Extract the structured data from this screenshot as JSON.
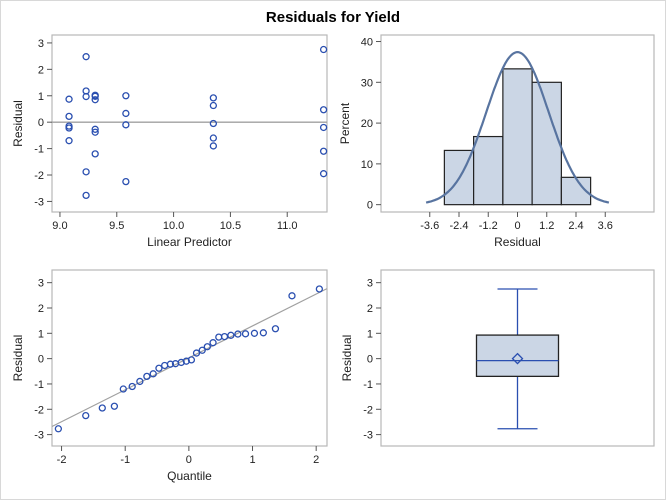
{
  "title": "Residuals for Yield",
  "colors": {
    "marker": "#2a4fb0",
    "fill": "#cbd6e5",
    "curve": "#5874a0",
    "refline": "#a0a0a0",
    "frame": "#b8b8b8"
  },
  "chart_data": [
    {
      "type": "scatter",
      "xlabel": "Linear Predictor",
      "ylabel": "Residual",
      "xlim": [
        8.93,
        11.35
      ],
      "ylim": [
        -3.4,
        3.3
      ],
      "xticks": [
        "9.0",
        "9.5",
        "10.0",
        "10.5",
        "11.0"
      ],
      "yticks": [
        "-3",
        "-2",
        "-1",
        "0",
        "1",
        "2",
        "3"
      ],
      "reference_line_y": 0,
      "points": [
        [
          9.08,
          0.87
        ],
        [
          9.08,
          0.22
        ],
        [
          9.08,
          -0.15
        ],
        [
          9.08,
          -0.22
        ],
        [
          9.08,
          -0.7
        ],
        [
          9.23,
          2.48
        ],
        [
          9.23,
          1.18
        ],
        [
          9.23,
          0.97
        ],
        [
          9.23,
          -1.88
        ],
        [
          9.23,
          -2.77
        ],
        [
          9.31,
          1.02
        ],
        [
          9.31,
          0.98
        ],
        [
          9.31,
          0.85
        ],
        [
          9.31,
          -0.27
        ],
        [
          9.31,
          -0.38
        ],
        [
          9.31,
          -1.2
        ],
        [
          9.58,
          1.0
        ],
        [
          9.58,
          0.33
        ],
        [
          9.58,
          -0.1
        ],
        [
          9.58,
          -2.25
        ],
        [
          10.35,
          0.92
        ],
        [
          10.35,
          0.63
        ],
        [
          10.35,
          -0.05
        ],
        [
          10.35,
          -0.6
        ],
        [
          10.35,
          -0.9
        ],
        [
          11.32,
          2.75
        ],
        [
          11.32,
          0.47
        ],
        [
          11.32,
          -0.2
        ],
        [
          11.32,
          -1.1
        ],
        [
          11.32,
          -1.95
        ]
      ]
    },
    {
      "type": "bar",
      "xlabel": "Residual",
      "ylabel": "Percent",
      "xlim": [
        -5.6,
        5.6
      ],
      "ylim": [
        -1.8,
        41.6
      ],
      "xticks": [
        "-3.6",
        "-2.4",
        "-1.2",
        "0",
        "1.2",
        "2.4",
        "3.6"
      ],
      "yticks": [
        "0",
        "10",
        "20",
        "30",
        "40"
      ],
      "bin_width": 1.2,
      "categories": [
        -2.4,
        -1.2,
        0,
        1.2,
        2.4
      ],
      "values": [
        13.3,
        16.7,
        33.3,
        30.0,
        6.7
      ],
      "normal_curve": {
        "mean": 0,
        "sd": 1.28
      }
    },
    {
      "type": "scatter",
      "xlabel": "Quantile",
      "ylabel": "Residual",
      "xlim": [
        -2.15,
        2.17
      ],
      "ylim": [
        -3.45,
        3.5
      ],
      "xticks": [
        "-2",
        "-1",
        "0",
        "1",
        "2"
      ],
      "yticks": [
        "-3",
        "-2",
        "-1",
        "0",
        "1",
        "2",
        "3"
      ],
      "reference_line": {
        "intercept": 0.03,
        "slope": 1.26
      },
      "points": [
        [
          -2.05,
          -2.77
        ],
        [
          -1.62,
          -2.25
        ],
        [
          -1.36,
          -1.95
        ],
        [
          -1.17,
          -1.88
        ],
        [
          -1.03,
          -1.2
        ],
        [
          -0.89,
          -1.1
        ],
        [
          -0.77,
          -0.9
        ],
        [
          -0.66,
          -0.7
        ],
        [
          -0.56,
          -0.6
        ],
        [
          -0.47,
          -0.38
        ],
        [
          -0.38,
          -0.27
        ],
        [
          -0.29,
          -0.22
        ],
        [
          -0.21,
          -0.2
        ],
        [
          -0.12,
          -0.15
        ],
        [
          -0.04,
          -0.1
        ],
        [
          0.04,
          -0.05
        ],
        [
          0.12,
          0.22
        ],
        [
          0.21,
          0.33
        ],
        [
          0.29,
          0.47
        ],
        [
          0.38,
          0.63
        ],
        [
          0.47,
          0.85
        ],
        [
          0.56,
          0.87
        ],
        [
          0.66,
          0.92
        ],
        [
          0.77,
          0.97
        ],
        [
          0.89,
          0.98
        ],
        [
          1.03,
          1.0
        ],
        [
          1.17,
          1.02
        ],
        [
          1.36,
          1.18
        ],
        [
          1.62,
          2.48
        ],
        [
          2.05,
          2.75
        ]
      ]
    },
    {
      "type": "box",
      "ylabel": "Residual",
      "ylim": [
        -3.45,
        3.5
      ],
      "yticks": [
        "-3",
        "-2",
        "-1",
        "0",
        "1",
        "2",
        "3"
      ],
      "min": -2.77,
      "q1": -0.7,
      "median": -0.08,
      "mean": 0.0,
      "q3": 0.93,
      "max": 2.75
    }
  ]
}
